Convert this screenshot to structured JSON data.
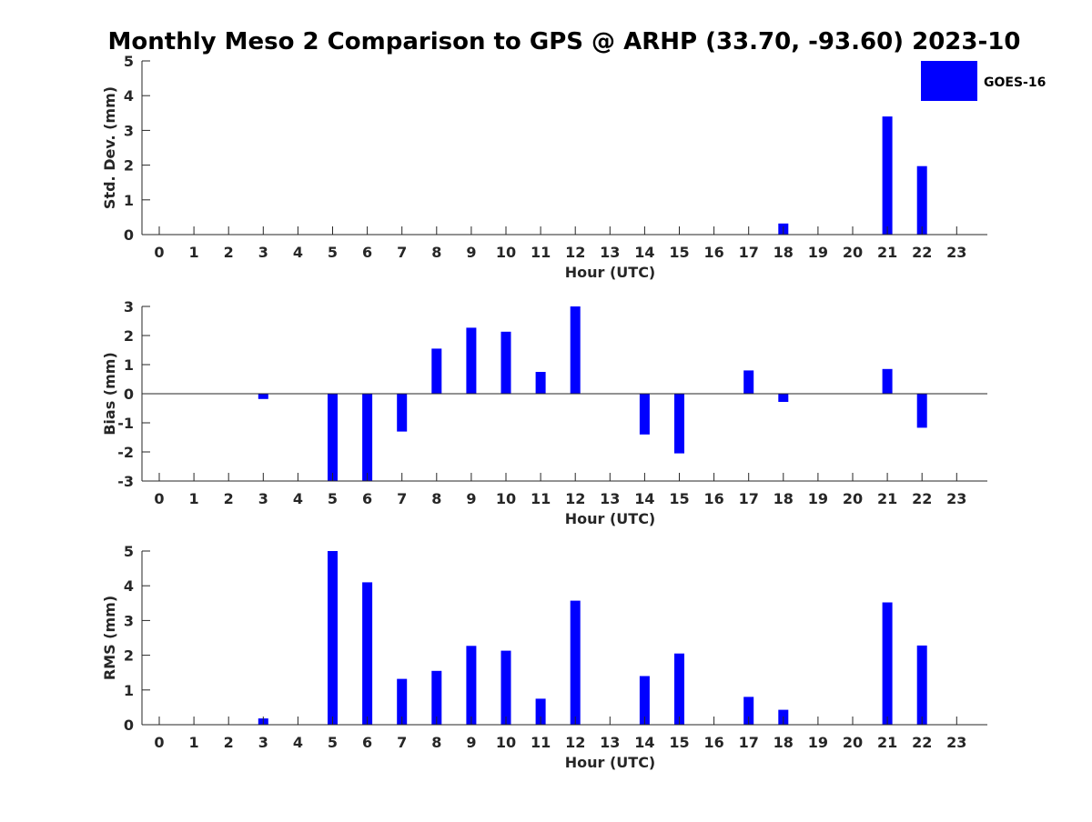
{
  "chart_data": {
    "type": "bar",
    "title": "Monthly Meso 2 Comparison to GPS @ ARHP (33.70, -93.60) 2023-10",
    "legend": {
      "label": "GOES-16",
      "placement": "top-right"
    },
    "color": "#0000ff",
    "categories": [
      "0",
      "1",
      "2",
      "3",
      "4",
      "5",
      "6",
      "7",
      "8",
      "9",
      "10",
      "11",
      "12",
      "13",
      "14",
      "15",
      "16",
      "17",
      "18",
      "19",
      "20",
      "21",
      "22",
      "23"
    ],
    "subplots": [
      {
        "ylabel": "Std. Dev. (mm)",
        "xlabel": "Hour (UTC)",
        "ylim": [
          0,
          5
        ],
        "yticks": [
          "0",
          "1",
          "2",
          "3",
          "4",
          "5"
        ],
        "values": [
          null,
          null,
          null,
          null,
          null,
          null,
          null,
          null,
          null,
          null,
          null,
          null,
          null,
          null,
          null,
          null,
          null,
          null,
          0.32,
          null,
          null,
          3.4,
          1.97,
          null
        ]
      },
      {
        "ylabel": "Bias (mm)",
        "xlabel": "Hour (UTC)",
        "ylim": [
          -3,
          3
        ],
        "yticks": [
          "-3",
          "-2",
          "-1",
          "0",
          "1",
          "2",
          "3"
        ],
        "values": [
          null,
          null,
          null,
          -0.18,
          null,
          -3.0,
          -3.0,
          -1.3,
          1.55,
          2.27,
          2.13,
          0.75,
          3.0,
          null,
          -1.4,
          -2.05,
          null,
          0.8,
          -0.28,
          null,
          null,
          0.85,
          -1.17,
          null
        ]
      },
      {
        "ylabel": "RMS (mm)",
        "xlabel": "Hour (UTC)",
        "ylim": [
          0,
          5
        ],
        "yticks": [
          "0",
          "1",
          "2",
          "3",
          "4",
          "5"
        ],
        "values": [
          null,
          null,
          null,
          0.18,
          null,
          5.0,
          4.1,
          1.32,
          1.55,
          2.27,
          2.13,
          0.75,
          3.57,
          null,
          1.4,
          2.05,
          null,
          0.8,
          0.43,
          null,
          null,
          3.52,
          2.28,
          null
        ]
      }
    ]
  }
}
